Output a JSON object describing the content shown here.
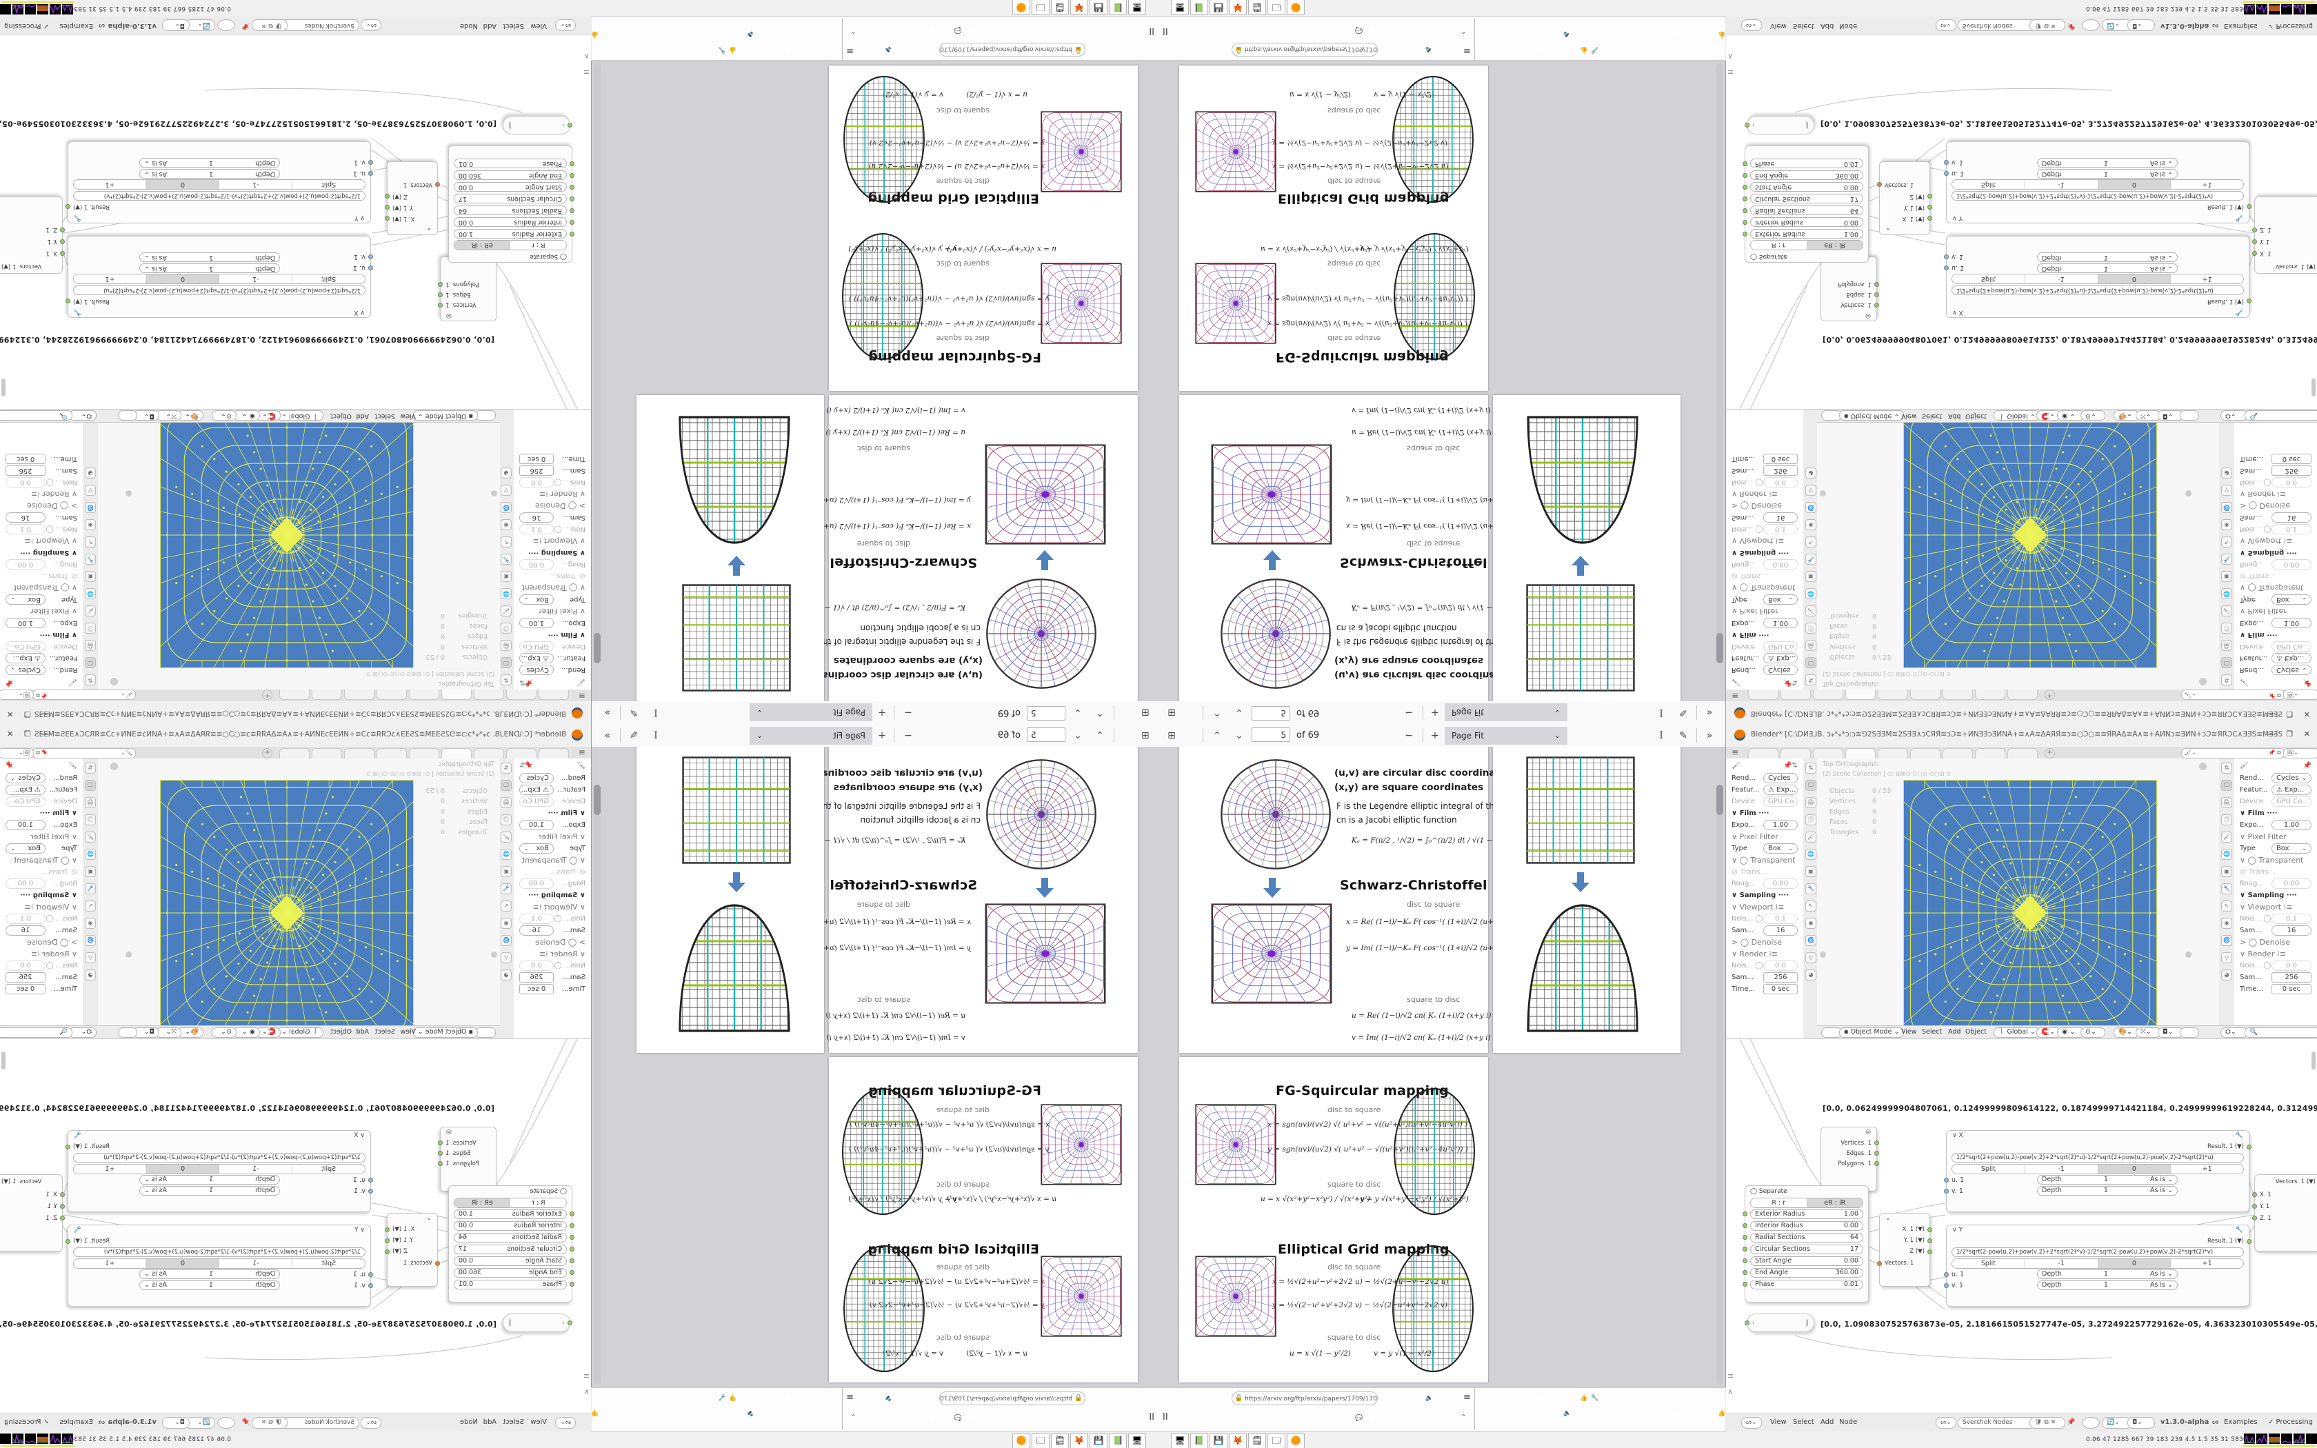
{
  "pdf": {
    "toolbar": {
      "page": "5",
      "of": "of 69",
      "zoom_label": "Page Fit"
    },
    "legend1": "(u,v)  are circular disc coordinates",
    "legend2": "(x,y)  are square coordinates",
    "legend3": "F is the Legendre elliptic integral of the 1st kind",
    "legend4": "cn is a Jacobi elliptic function",
    "ke": "Kₑ =  F(π∕2 , ¹∕√2)  =  ∫₀^(π∕2)  dt ∕ √(1 − ½ sin²t)   ≈ 1.854",
    "sections": [
      {
        "title": "Schwarz-Christoffel mapping",
        "d2s": "disc to square",
        "s2d": "square to disc",
        "eqa": "x = Re( (1−i)∕−Kₑ  F( cos⁻¹( (1+i)∕√2 (u+v i) ) , ¹∕√2 ) ) + 1",
        "eqb": "y = Im( (1−i)∕−Kₑ  F( cos⁻¹( (1+i)∕√2 (u+v i) ) , ¹∕√2 ) ) − 1",
        "eqc": "u = Re( (1−i)∕√2  cn( Kₑ (1+i)∕2 (x+y i) − Kₑ , ¹∕√2 ) )",
        "eqd": "v = Im( (1−i)∕√2  cn( Kₑ (1+i)∕2 (x+y i) − Kₑ , ¹∕√2 ) )"
      },
      {
        "title": "FG-Squircular mapping",
        "d2s": "disc to square",
        "s2d": "square to disc",
        "eqa": "x = sgn(uv)∕(v√2) √( u²+v² − √((u²+v²)(u²+v²−4u²v²)) )",
        "eqb": "y = sgn(uv)∕(u√2) √( u²+v² − √((u²+v²)(u²+v²−4u²v²)) )",
        "eqc": "u = x √(x²+y²−x²y²) ∕ √(x²+y²)",
        "eqd": "v = y √(x²+y²−x²y²) ∕ √(x²+y²)"
      },
      {
        "title": "Elliptical Grid mapping",
        "d2s": "disc to square",
        "s2d": "square to disc",
        "eqa": "x = ½√(2+u²−v²+2√2 u)  −  ½√(2+u²−v²−2√2 u)",
        "eqb": "y = ½√(2−u²+v²+2√2 v)  −  ½√(2−u²+v²−2√2 v)",
        "eqc": "u = x √(1 − y²∕2)",
        "eqd": "v = y √(1 − x²∕2)"
      }
    ]
  },
  "browser": {
    "url": "https://arxiv.org/ftp/arxiv/papers/1709/1709",
    "ext_icons_left": [
      {
        "c": "#2b6fd4",
        "g": "V"
      },
      {
        "c": "#7da860",
        "g": ""
      },
      {
        "c": "#8a8a8a",
        "g": "⊕"
      },
      {
        "c": "#8a8a8a",
        "g": "⊕"
      },
      {
        "c": "#9a9a9a",
        "g": "∩"
      },
      {
        "c": "#9a9a9a",
        "g": "∩"
      },
      {
        "c": "#8a8a8a",
        "g": "⊕"
      },
      {
        "c": "#b5b5b5",
        "g": "»"
      },
      {
        "c": "#b5b5b5",
        "g": "←"
      },
      {
        "c": "#9aa0a8",
        "g": "⬠"
      }
    ],
    "ext_icons_right": [
      {
        "c": "#4a90d9",
        "g": "A"
      },
      {
        "c": "#c9c9c9",
        "g": "☆"
      },
      {
        "c": "#b5b5b5",
        "g": "→"
      },
      {
        "c": "#9a9a9a",
        "g": "↻"
      },
      {
        "c": "#8a8a8a",
        "g": "🔉"
      },
      {
        "c": "#6aa1d8",
        "g": "↓"
      },
      {
        "c": "#c05ad4",
        "g": "✎"
      },
      {
        "c": "#3a78c9",
        "g": "文"
      },
      {
        "c": "#d8d8d8",
        "g": "⬭"
      },
      {
        "c": "#2f6fe0",
        "g": "+"
      },
      {
        "c": "#2f8fe0",
        "g": "⬇"
      },
      {
        "c": "#c42121",
        "g": "●"
      },
      {
        "c": "#4a4a4a",
        "g": "🗑"
      },
      {
        "c": "#3f7fbf",
        "g": "❋"
      },
      {
        "c": "#6a6a6a",
        "g": "▤"
      },
      {
        "c": "#8f1f2f",
        "g": "Ⓤ"
      },
      {
        "c": "#18a0a8",
        "g": "◔"
      },
      {
        "c": "#9a9a9a",
        "g": "⊕"
      },
      {
        "c": "#d0d0d0",
        "g": "👍"
      },
      {
        "c": "#8a8a8a",
        "g": "🔧"
      },
      {
        "c": "#8a8a8a",
        "g": "⚙"
      }
    ],
    "quick_icons": [
      {
        "c": "#4285F4",
        "g": "G"
      },
      {
        "c": "#e8852c",
        "g": "≋"
      },
      {
        "c": "#f48024",
        "g": "B"
      },
      {
        "c": "#4285F4",
        "g": "G"
      },
      {
        "c": "#3cb54a",
        "g": "☻"
      },
      {
        "c": "#7b5ad4",
        "g": "💬"
      },
      {
        "c": "#c42121",
        "g": "✿"
      },
      {
        "c": "#c42121",
        "g": "✿"
      }
    ],
    "menu_glyph": "≡",
    "pause_glyph": "II",
    "collapse_glyph": "⌃"
  },
  "taskbar": {
    "apps": [
      {
        "g": "🖥"
      },
      {
        "g": "📗"
      },
      {
        "g": "💾"
      },
      {
        "g": "🦊"
      },
      {
        "g": "🗒"
      },
      {
        "g": "🗔"
      },
      {
        "g": "🟠"
      }
    ],
    "status_numbers": "0.06   47   1285 667   39   183   239   4.5   1.5   35   31   58307169"
  },
  "blender": {
    "title": "Blender* [C:\\DИƎ⅃B. ɔ⁎*⁎*ɔ:ɔ≋⅁2SƎƎM≋2SƎƎ∧ɔCЯЯ≋ɔƆ≋+ИNƎƎɔƎИNA+≋∧A≋ΔAЯЯ≋ɔ≋○Ɔ○≋≋ЯRAΔ≋A∧≋+AИNɔ≋ƎИN+ɔƆ≋ЯRƆC∧ƎƎS≋MƎƎS2⅁≋ɔ⁎*⁎*...",
    "window_buttons": "— ❐ ✕",
    "viewport": {
      "view_label": "Top Orthographic",
      "collection_label": "(2) Scene Collection | ⊙: ⊞⊕⊙·⊙○⊙·⊙○⊞ ⊙",
      "stats": [
        {
          "l": "Objects",
          "v": "0 / 53"
        },
        {
          "l": "Vertices",
          "v": "0"
        },
        {
          "l": "Edges",
          "v": "0"
        },
        {
          "l": "Faces",
          "v": "0"
        },
        {
          "l": "Triangles",
          "v": "0"
        }
      ]
    },
    "props_rows": [
      {
        "l": "Rend...",
        "v": "Cycles",
        "k": "sel"
      },
      {
        "l": "Featur...",
        "v": "⚠ Exp...",
        "k": "sel"
      },
      {
        "l": "Device",
        "v": "GPU Co...",
        "k": "sel dim"
      },
      {
        "l": "∨ Film  ····",
        "v": "",
        "k": "sec"
      },
      {
        "l": "Expo...",
        "v": "1.00",
        "k": "pillc"
      },
      {
        "l": "∨ Pixel Filter",
        "v": "",
        "k": "sub"
      },
      {
        "l": "Type",
        "v": "Box",
        "k": "sel"
      },
      {
        "l": "∨ ◯ Transparent",
        "v": "",
        "k": "sub"
      },
      {
        "l": "⊘ Trans...",
        "v": "",
        "k": "sub dim"
      },
      {
        "l": "Roug...",
        "v": "0.00",
        "k": "pillc dim"
      },
      {
        "l": "∨ Sampling  ····",
        "v": "",
        "k": "sec"
      },
      {
        "l": "∨ Viewport ⁞≡",
        "v": "",
        "k": "sub"
      },
      {
        "l": "Nois... ◯",
        "v": "0.1",
        "k": "pillc dim"
      },
      {
        "l": "Sam...",
        "v": "16",
        "k": "pillc"
      },
      {
        "l": "> ◯ Denoise",
        "v": "",
        "k": "sub"
      },
      {
        "l": "∨ Render ⁞≡",
        "v": "",
        "k": "sub"
      },
      {
        "l": "Nois... ◯",
        "v": "0.0",
        "k": "pillc dim"
      },
      {
        "l": "Sam...",
        "v": "256",
        "k": "box"
      },
      {
        "l": "Time...",
        "v": "0 sec",
        "k": "box"
      }
    ],
    "header": {
      "mode": "▪ Object Mode ⌄",
      "m1": "View",
      "m2": "Select",
      "m3": "Add",
      "m4": "Object",
      "orient": "⎱ Global ⌄"
    },
    "nodes": {
      "viewer_rows": [
        {
          "n": "Vertices. 1",
          "d": "dO"
        },
        {
          "n": "Edges. 1",
          "d": "dG"
        },
        {
          "n": "Polygons. 1",
          "d": "dG"
        }
      ],
      "circle": {
        "separate": "◯ Separate",
        "t1": "R : r",
        "t2": "eR : iR",
        "sliders": [
          {
            "l": "Exterior Radius",
            "v": "1.00"
          },
          {
            "l": "Interior Radius",
            "v": "0.00"
          },
          {
            "l": "Radial Sections",
            "v": "64"
          },
          {
            "l": "Circular Sections",
            "v": "17"
          },
          {
            "l": "Start Angle",
            "v": "0.00"
          },
          {
            "l": "End Angle",
            "v": "360.00"
          },
          {
            "l": "Phase",
            "v": "0.01"
          }
        ]
      },
      "vec_out": {
        "rows": [
          {
            "n": "X. 1 (▼)"
          },
          {
            "n": "Y. 1 (▼)"
          },
          {
            "n": "Z (▼)"
          }
        ],
        "out": "Vectors. 1"
      },
      "vec_in": {
        "out": "Vectors. 1 (▼)",
        "rows": [
          {
            "n": "X. 1"
          },
          {
            "n": "Y. 1"
          },
          {
            "n": "Z. 1"
          }
        ]
      },
      "fx": {
        "name": "∨ X",
        "result": "Result. 1 (▼)",
        "formula": "1/2*sqrt(2+pow(u,2)-pow(v,2)+2*sqrt(2)*u)-1/2*sqrt(2+pow(u,2)-pow(v,2)-2*sqrt(2)*u)",
        "s1": "Split",
        "s2": "-1",
        "s3": "0",
        "s4": "+1",
        "u": "u. 1",
        "v": "v. 1",
        "depth": "Depth",
        "one": "1",
        "asis": "As is ⌄"
      },
      "fy": {
        "name": "∨ Y",
        "result": "Result. 1 (▼)",
        "formula": "1/2*sqrt(2-pow(u,2)+pow(v,2)+2*sqrt(2)*v)-1/2*sqrt(2-pow(u,2)+pow(v,2)-2*sqrt(2)*v)",
        "s1": "Split",
        "s2": "-1",
        "s3": "0",
        "s4": "+1",
        "u": "u. 1",
        "v": "v. 1",
        "depth": "Depth",
        "one": "1",
        "asis": "As is ⌄"
      },
      "array1": "[0.0, 0.06249999904807061, 0.12499999809614122, 0.18749999714421184, 0.24999999619228244, 0.31249999524035305, 0.37499999428842366, 0.4374999933",
      "array2": "[0.0, 1.0908307525763873e-05, 2.1816615051527747e-05, 3.272492257729162e-05, 4.363323010305549e-05, 5.454153762881936e-05, 6.544984515458323e-05"
    },
    "node_footer": {
      "m1": "View",
      "m2": "Select",
      "m3": "Add",
      "m4": "Node",
      "tree": "Sverchok Nodes",
      "version": "v1.3.0-alpha",
      "examples": "Examples",
      "processing": "✓  Processing"
    }
  }
}
